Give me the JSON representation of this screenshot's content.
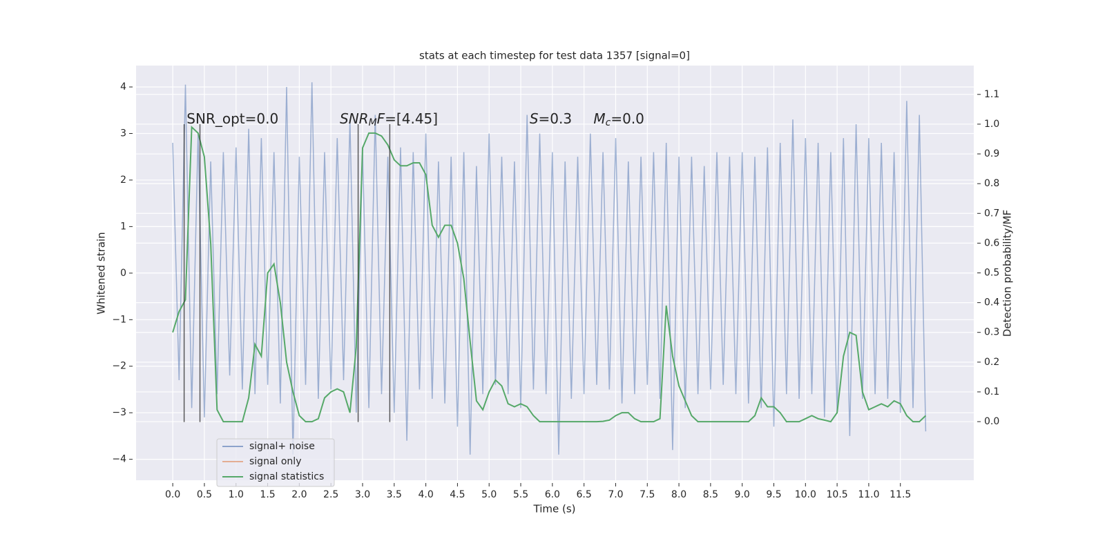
{
  "chart_data": {
    "type": "line",
    "title": "stats at each timestep for test data 1357 [signal=0]",
    "xlabel": "Time (s)",
    "ylabel": "Whitened strain",
    "y2label": "Detection probability/MF",
    "x": [
      0.0,
      0.1,
      0.2,
      0.3,
      0.4,
      0.5,
      0.6,
      0.7,
      0.8,
      0.9,
      1.0,
      1.1,
      1.2,
      1.3,
      1.4,
      1.5,
      1.6,
      1.7,
      1.8,
      1.9,
      2.0,
      2.1,
      2.2,
      2.3,
      2.4,
      2.5,
      2.6,
      2.7,
      2.8,
      2.9,
      3.0,
      3.1,
      3.2,
      3.3,
      3.4,
      3.5,
      3.6,
      3.7,
      3.8,
      3.9,
      4.0,
      4.1,
      4.2,
      4.3,
      4.4,
      4.5,
      4.6,
      4.7,
      4.8,
      4.9,
      5.0,
      5.1,
      5.2,
      5.3,
      5.4,
      5.5,
      5.6,
      5.7,
      5.8,
      5.9,
      6.0,
      6.1,
      6.2,
      6.3,
      6.4,
      6.5,
      6.6,
      6.7,
      6.8,
      6.9,
      7.0,
      7.1,
      7.2,
      7.3,
      7.4,
      7.5,
      7.6,
      7.7,
      7.8,
      7.9,
      8.0,
      8.1,
      8.2,
      8.3,
      8.4,
      8.5,
      8.6,
      8.7,
      8.8,
      8.9,
      9.0,
      9.1,
      9.2,
      9.3,
      9.4,
      9.5,
      9.6,
      9.7,
      9.8,
      9.9,
      10.0,
      10.1,
      10.2,
      10.3,
      10.4,
      10.5,
      10.6,
      10.7,
      10.8,
      10.9,
      11.0,
      11.1,
      11.2,
      11.3,
      11.4,
      11.5,
      11.6,
      11.7,
      11.8,
      11.9
    ],
    "series": [
      {
        "name": "signal+ noise",
        "color": "#4c72b0",
        "values": [
          2.8,
          -2.3,
          4.05,
          -2.9,
          3.0,
          -3.1,
          2.4,
          -2.6,
          2.6,
          -2.2,
          2.7,
          -2.5,
          3.1,
          -2.6,
          2.9,
          -2.4,
          2.6,
          -2.8,
          4.0,
          -3.9,
          2.5,
          -2.4,
          4.1,
          -2.7,
          2.6,
          -2.5,
          2.9,
          -2.3,
          3.3,
          -3.0,
          2.6,
          -2.9,
          3.4,
          -2.6,
          2.5,
          -3.0,
          2.7,
          -3.6,
          2.6,
          -2.5,
          3.0,
          -2.7,
          2.4,
          -2.8,
          2.5,
          -3.3,
          2.6,
          -3.9,
          2.3,
          -2.6,
          3.0,
          -2.4,
          2.5,
          -2.6,
          2.4,
          -2.9,
          3.4,
          -2.5,
          3.0,
          -2.6,
          2.6,
          -3.9,
          2.4,
          -2.7,
          2.5,
          -2.6,
          3.0,
          -2.4,
          2.6,
          -2.5,
          2.9,
          -2.8,
          2.4,
          -2.6,
          2.5,
          -2.4,
          2.6,
          -2.7,
          2.8,
          -3.8,
          2.5,
          -2.9,
          2.5,
          -2.6,
          2.3,
          -2.5,
          2.6,
          -2.4,
          2.5,
          -2.6,
          2.6,
          -2.8,
          2.5,
          -2.9,
          2.7,
          -3.3,
          2.8,
          -2.6,
          3.3,
          -2.7,
          2.9,
          -2.6,
          2.8,
          -3.1,
          2.6,
          -3.0,
          2.9,
          -3.5,
          3.2,
          -2.7,
          2.9,
          -2.6,
          2.8,
          -2.7,
          2.6,
          -3.0,
          3.7,
          -2.9,
          3.4,
          -3.4
        ]
      },
      {
        "name": "signal only",
        "color": "#dd8452",
        "values": [
          null,
          null,
          null,
          null,
          null,
          null,
          null,
          null,
          null,
          null,
          null,
          null,
          null,
          null,
          null,
          null,
          null,
          null,
          null,
          null,
          null,
          null,
          null,
          null,
          null,
          null,
          null,
          null,
          null,
          null,
          null,
          null,
          null,
          null,
          null,
          null,
          null,
          null,
          null,
          null,
          null,
          null,
          null,
          null,
          null,
          null,
          null,
          null,
          null,
          null,
          null,
          null,
          null,
          null,
          null,
          null,
          null,
          null,
          null,
          null,
          null,
          null,
          null,
          null,
          null,
          null,
          null,
          null,
          null,
          null,
          null,
          null,
          null,
          null,
          null,
          null,
          null,
          null,
          null,
          null,
          null,
          null,
          null,
          null,
          null,
          null,
          null,
          null,
          null,
          null,
          null,
          null,
          null,
          null,
          null,
          null,
          null,
          null,
          null,
          null,
          null,
          null,
          null,
          null,
          null,
          null,
          null,
          null,
          null,
          null,
          null,
          null,
          null,
          null,
          null,
          null,
          null,
          null,
          null,
          null
        ]
      },
      {
        "name": "signal statistics",
        "color": "#55a868",
        "axis": "y2",
        "values": [
          0.3,
          0.37,
          0.41,
          0.99,
          0.97,
          0.89,
          0.6,
          0.04,
          0.0,
          0.0,
          0.0,
          0.0,
          0.08,
          0.26,
          0.22,
          0.5,
          0.53,
          0.4,
          0.2,
          0.1,
          0.02,
          0.0,
          0.0,
          0.01,
          0.08,
          0.1,
          0.11,
          0.1,
          0.03,
          0.25,
          0.92,
          0.97,
          0.97,
          0.96,
          0.93,
          0.88,
          0.86,
          0.86,
          0.87,
          0.87,
          0.83,
          0.66,
          0.62,
          0.66,
          0.66,
          0.6,
          0.48,
          0.27,
          0.07,
          0.04,
          0.1,
          0.14,
          0.12,
          0.06,
          0.05,
          0.06,
          0.05,
          0.02,
          0.0,
          0.0,
          0.0,
          0.0,
          0.0,
          0.0,
          0.0,
          0.0,
          0.0,
          0.0,
          0.001,
          0.005,
          0.02,
          0.03,
          0.03,
          0.01,
          0.0,
          0.0,
          0.0,
          0.01,
          0.39,
          0.22,
          0.12,
          0.07,
          0.02,
          0.0,
          0.0,
          0.0,
          0.0,
          0.0,
          0.0,
          0.0,
          0.0,
          0.0,
          0.02,
          0.08,
          0.05,
          0.05,
          0.03,
          0.0,
          0.0,
          0.0,
          0.01,
          0.02,
          0.01,
          0.005,
          0.0,
          0.03,
          0.22,
          0.3,
          0.29,
          0.1,
          0.04,
          0.05,
          0.06,
          0.05,
          0.07,
          0.06,
          0.02,
          0.0,
          0.0,
          0.02
        ]
      }
    ],
    "vlines": {
      "x": [
        0.18,
        0.43,
        2.93,
        3.43
      ],
      "ymin": -3.2,
      "ymax": 3.2,
      "color": "#333333"
    },
    "annotations": [
      {
        "x": 0.22,
        "y": 3.3,
        "parts": [
          {
            "text": "SNR_opt=0.0"
          }
        ]
      },
      {
        "x": 2.64,
        "y": 3.3,
        "parts": [
          {
            "text": "SNR",
            "italic": true
          },
          {
            "text": "M",
            "italic": true,
            "sub": true
          },
          {
            "text": "F",
            "italic": true
          },
          {
            "text": "=[4.45]"
          }
        ]
      },
      {
        "x": 5.64,
        "y": 3.3,
        "parts": [
          {
            "text": "S",
            "italic": true
          },
          {
            "text": "=0.3"
          }
        ]
      },
      {
        "x": 6.65,
        "y": 3.3,
        "parts": [
          {
            "text": "M",
            "italic": true
          },
          {
            "text": "c",
            "italic": true,
            "sub": true
          },
          {
            "text": "=0.0"
          }
        ]
      }
    ],
    "xlim": [
      -0.58,
      12.66
    ],
    "xticks": [
      {
        "value": 0,
        "label": "0.0"
      },
      0.5,
      {
        "value": 1,
        "label": "1.0"
      },
      1.5,
      {
        "value": 2,
        "label": "2.0"
      },
      2.5,
      {
        "value": 3,
        "label": "3.0"
      },
      3.5,
      {
        "value": 4,
        "label": "4.0"
      },
      4.5,
      {
        "value": 5,
        "label": "5.0"
      },
      5.5,
      {
        "value": 6,
        "label": "6.0"
      },
      6.5,
      {
        "value": 7,
        "label": "7.0"
      },
      7.5,
      {
        "value": 8,
        "label": "8.0"
      },
      8.5,
      {
        "value": 9,
        "label": "9.0"
      },
      9.5,
      {
        "value": 10,
        "label": "10.0"
      },
      10.5,
      {
        "value": 11,
        "label": "11.0"
      },
      11.5
    ],
    "ylim": [
      -4.45,
      4.46
    ],
    "yticks": [
      {
        "value": -4,
        "label": "−4"
      },
      {
        "value": -3,
        "label": "−3"
      },
      {
        "value": -2,
        "label": "−2"
      },
      {
        "value": -1,
        "label": "−1"
      },
      0,
      1,
      2,
      3,
      4
    ],
    "y2lim": [
      -0.197,
      1.197
    ],
    "y2ticks": [
      {
        "value": 0,
        "label": "0.0"
      },
      0.1,
      0.2,
      0.3,
      0.4,
      0.5,
      0.6,
      0.7,
      0.8,
      0.9,
      {
        "value": 1,
        "label": "1.0"
      },
      1.1
    ],
    "grid": true,
    "legend": "lower left"
  }
}
